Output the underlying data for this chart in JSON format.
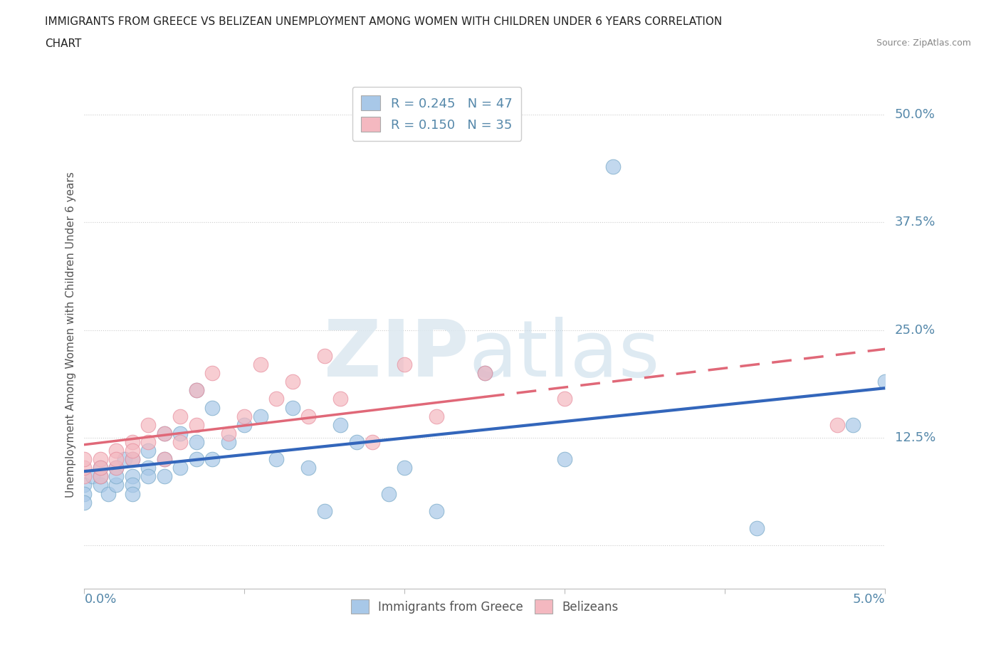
{
  "title_line1": "IMMIGRANTS FROM GREECE VS BELIZEAN UNEMPLOYMENT AMONG WOMEN WITH CHILDREN UNDER 6 YEARS CORRELATION",
  "title_line2": "CHART",
  "source": "Source: ZipAtlas.com",
  "ylabel": "Unemployment Among Women with Children Under 6 years",
  "xlim": [
    0.0,
    0.05
  ],
  "ylim": [
    -0.05,
    0.54
  ],
  "legend_r1": "R = 0.245   N = 47",
  "legend_r2": "R = 0.150   N = 35",
  "blue_color": "#a8c8e8",
  "pink_color": "#f4b8c0",
  "blue_edge_color": "#7aaac8",
  "pink_edge_color": "#e890a0",
  "blue_line_color": "#3366bb",
  "pink_line_color": "#e06878",
  "axis_color": "#5588aa",
  "title_color": "#222222",
  "source_color": "#888888",
  "grid_color": "#cccccc",
  "greece_x": [
    0.0,
    0.0,
    0.0,
    0.0005,
    0.001,
    0.001,
    0.001,
    0.0015,
    0.002,
    0.002,
    0.002,
    0.0025,
    0.003,
    0.003,
    0.003,
    0.003,
    0.004,
    0.004,
    0.004,
    0.005,
    0.005,
    0.005,
    0.006,
    0.006,
    0.007,
    0.007,
    0.007,
    0.008,
    0.008,
    0.009,
    0.01,
    0.011,
    0.012,
    0.013,
    0.014,
    0.015,
    0.016,
    0.017,
    0.019,
    0.02,
    0.022,
    0.025,
    0.03,
    0.033,
    0.042,
    0.048,
    0.05
  ],
  "greece_y": [
    0.07,
    0.06,
    0.05,
    0.08,
    0.07,
    0.08,
    0.09,
    0.06,
    0.07,
    0.09,
    0.08,
    0.1,
    0.08,
    0.1,
    0.07,
    0.06,
    0.11,
    0.09,
    0.08,
    0.13,
    0.1,
    0.08,
    0.13,
    0.09,
    0.18,
    0.12,
    0.1,
    0.16,
    0.1,
    0.12,
    0.14,
    0.15,
    0.1,
    0.16,
    0.09,
    0.04,
    0.14,
    0.12,
    0.06,
    0.09,
    0.04,
    0.2,
    0.1,
    0.44,
    0.02,
    0.14,
    0.19
  ],
  "belize_x": [
    0.0,
    0.0,
    0.0,
    0.001,
    0.001,
    0.001,
    0.002,
    0.002,
    0.002,
    0.003,
    0.003,
    0.003,
    0.004,
    0.004,
    0.005,
    0.005,
    0.006,
    0.006,
    0.007,
    0.007,
    0.008,
    0.009,
    0.01,
    0.011,
    0.012,
    0.013,
    0.014,
    0.015,
    0.016,
    0.018,
    0.02,
    0.022,
    0.025,
    0.03,
    0.047
  ],
  "belize_y": [
    0.08,
    0.09,
    0.1,
    0.08,
    0.1,
    0.09,
    0.09,
    0.11,
    0.1,
    0.1,
    0.12,
    0.11,
    0.14,
    0.12,
    0.13,
    0.1,
    0.15,
    0.12,
    0.18,
    0.14,
    0.2,
    0.13,
    0.15,
    0.21,
    0.17,
    0.19,
    0.15,
    0.22,
    0.17,
    0.12,
    0.21,
    0.15,
    0.2,
    0.17,
    0.14
  ],
  "ytick_vals": [
    0.0,
    0.125,
    0.25,
    0.375,
    0.5
  ],
  "ytick_labels": [
    "",
    "12.5%",
    "25.0%",
    "37.5%",
    "50.0%"
  ]
}
